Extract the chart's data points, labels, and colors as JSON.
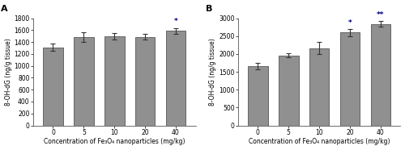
{
  "panel_A": {
    "label": "A",
    "categories": [
      "0",
      "5",
      "10",
      "20",
      "40"
    ],
    "values": [
      1310,
      1480,
      1500,
      1490,
      1590
    ],
    "errors": [
      60,
      80,
      50,
      45,
      50
    ],
    "ylim": [
      0,
      1800
    ],
    "yticks": [
      0,
      200,
      400,
      600,
      800,
      1000,
      1200,
      1400,
      1600,
      1800
    ],
    "ylabel": "8-OH-dG (ng/g tissue)",
    "xlabel": "Concentration of Fe₃O₄ nanoparticles (mg/kg)",
    "significance": [
      "",
      "",
      "",
      "",
      "*"
    ]
  },
  "panel_B": {
    "label": "B",
    "categories": [
      "0",
      "5",
      "10",
      "20",
      "40"
    ],
    "values": [
      1660,
      1960,
      2160,
      2600,
      2840
    ],
    "errors": [
      100,
      60,
      170,
      100,
      80
    ],
    "ylim": [
      0,
      3000
    ],
    "yticks": [
      0,
      500,
      1000,
      1500,
      2000,
      2500,
      3000
    ],
    "ylabel": "8-OH-dG (ng/g tissue)",
    "xlabel": "Concentration of Fe₃O₄ nanoparticles (mg/kg)",
    "significance": [
      "",
      "",
      "",
      "*",
      "**"
    ]
  },
  "bar_color": "#909090",
  "bar_edge_color": "#555555",
  "bar_width": 0.65,
  "error_color": "#333333",
  "sig_color": "#000080",
  "background_color": "#ffffff",
  "tick_fontsize": 5.5,
  "label_fontsize": 5.5,
  "panel_label_fontsize": 8,
  "sig_fontsize": 6.5
}
